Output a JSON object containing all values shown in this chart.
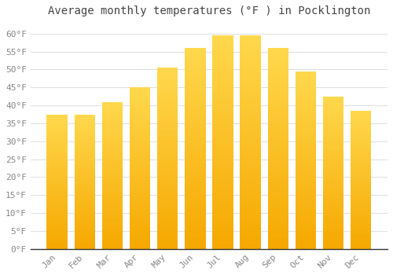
{
  "title": "Average monthly temperatures (°F ) in Pocklington",
  "months": [
    "Jan",
    "Feb",
    "Mar",
    "Apr",
    "May",
    "Jun",
    "Jul",
    "Aug",
    "Sep",
    "Oct",
    "Nov",
    "Dec"
  ],
  "values": [
    37.5,
    37.5,
    41,
    45,
    50.5,
    56,
    59.5,
    59.5,
    56,
    49.5,
    42.5,
    38.5
  ],
  "bar_color_top": "#FFD84D",
  "bar_color_bottom": "#F5A800",
  "background_color": "#FFFFFF",
  "grid_color": "#E0E0E0",
  "ylim": [
    0,
    63
  ],
  "yticks": [
    0,
    5,
    10,
    15,
    20,
    25,
    30,
    35,
    40,
    45,
    50,
    55,
    60
  ],
  "title_fontsize": 10,
  "tick_fontsize": 8,
  "title_color": "#444444",
  "tick_color": "#888888"
}
